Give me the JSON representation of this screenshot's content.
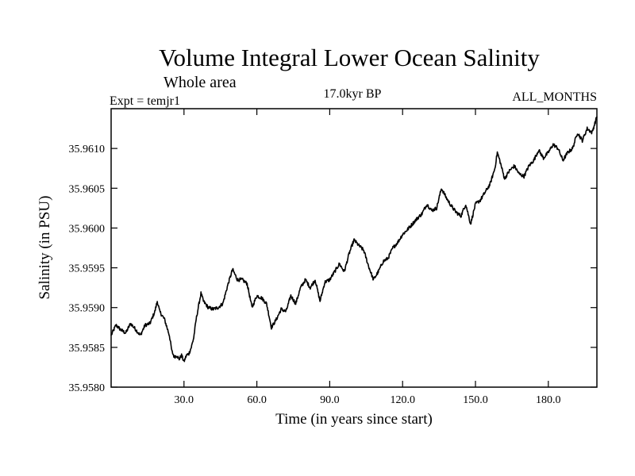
{
  "chart_data": {
    "type": "line",
    "title": "Volume Integral Lower Ocean Salinity",
    "subtitle": "Whole area",
    "experiment_label": "Expt = temjr1",
    "period_label": "17.0kyr BP",
    "months_label": "ALL_MONTHS",
    "xlabel": "Time (in years since start)",
    "ylabel": "Salinity (in PSU)",
    "xlim": [
      0,
      200
    ],
    "ylim": [
      35.958,
      35.9615
    ],
    "x_ticks": [
      30,
      60,
      90,
      120,
      150,
      180
    ],
    "x_tick_labels": [
      "30.0",
      "60.0",
      "90.0",
      "120.0",
      "150.0",
      "180.0"
    ],
    "y_ticks": [
      35.958,
      35.9585,
      35.959,
      35.9595,
      35.96,
      35.9605,
      35.961
    ],
    "y_tick_labels": [
      "35.9580",
      "35.9585",
      "35.9590",
      "35.9595",
      "35.9600",
      "35.9605",
      "35.9610"
    ],
    "grid": false,
    "line_color": "#000000",
    "series": [
      {
        "name": "Salinity",
        "x": [
          0,
          2,
          4,
          6,
          8,
          10,
          12,
          14,
          16,
          18,
          19,
          20,
          22,
          24,
          25,
          26,
          27,
          28,
          29,
          30,
          31,
          32,
          33,
          34,
          35,
          36,
          37,
          38,
          40,
          42,
          44,
          46,
          48,
          50,
          52,
          54,
          56,
          58,
          60,
          62,
          64,
          66,
          68,
          70,
          72,
          74,
          76,
          78,
          80,
          82,
          84,
          86,
          88,
          90,
          92,
          94,
          96,
          98,
          100,
          102,
          104,
          106,
          108,
          110,
          112,
          114,
          116,
          118,
          120,
          122,
          124,
          126,
          128,
          130,
          132,
          134,
          136,
          138,
          140,
          142,
          144,
          146,
          148,
          150,
          152,
          154,
          156,
          158,
          159,
          160,
          162,
          164,
          166,
          168,
          170,
          172,
          174,
          176,
          178,
          180,
          182,
          184,
          186,
          188,
          190,
          192,
          194,
          196,
          198,
          200
        ],
        "y": [
          35.95865,
          35.95878,
          35.95872,
          35.95868,
          35.9588,
          35.95873,
          35.95865,
          35.95878,
          35.9588,
          35.95895,
          35.95908,
          35.95895,
          35.95885,
          35.95865,
          35.95845,
          35.95838,
          35.9584,
          35.95835,
          35.9584,
          35.95832,
          35.9584,
          35.95842,
          35.9585,
          35.95862,
          35.95885,
          35.95902,
          35.95918,
          35.95908,
          35.959,
          35.95898,
          35.959,
          35.95905,
          35.95928,
          35.95948,
          35.95935,
          35.95935,
          35.9593,
          35.959,
          35.95915,
          35.95912,
          35.95905,
          35.95875,
          35.95885,
          35.95898,
          35.95895,
          35.95915,
          35.95905,
          35.95925,
          35.95935,
          35.95925,
          35.95935,
          35.95908,
          35.95932,
          35.95935,
          35.95945,
          35.95955,
          35.95945,
          35.95968,
          35.95985,
          35.95978,
          35.95972,
          35.95952,
          35.95935,
          35.95945,
          35.95958,
          35.95962,
          35.95975,
          35.95982,
          35.95992,
          35.95998,
          35.96005,
          35.96012,
          35.96018,
          35.9603,
          35.96022,
          35.96025,
          35.9605,
          35.96038,
          35.96028,
          35.9602,
          35.96015,
          35.9603,
          35.96005,
          35.9603,
          35.96035,
          35.96045,
          35.96055,
          35.96075,
          35.96095,
          35.96085,
          35.96062,
          35.96072,
          35.96078,
          35.96068,
          35.96065,
          35.96078,
          35.96085,
          35.96098,
          35.96088,
          35.96095,
          35.96105,
          35.961,
          35.96085,
          35.96095,
          35.961,
          35.9612,
          35.9611,
          35.96125,
          35.9612,
          35.9614
        ]
      }
    ]
  }
}
